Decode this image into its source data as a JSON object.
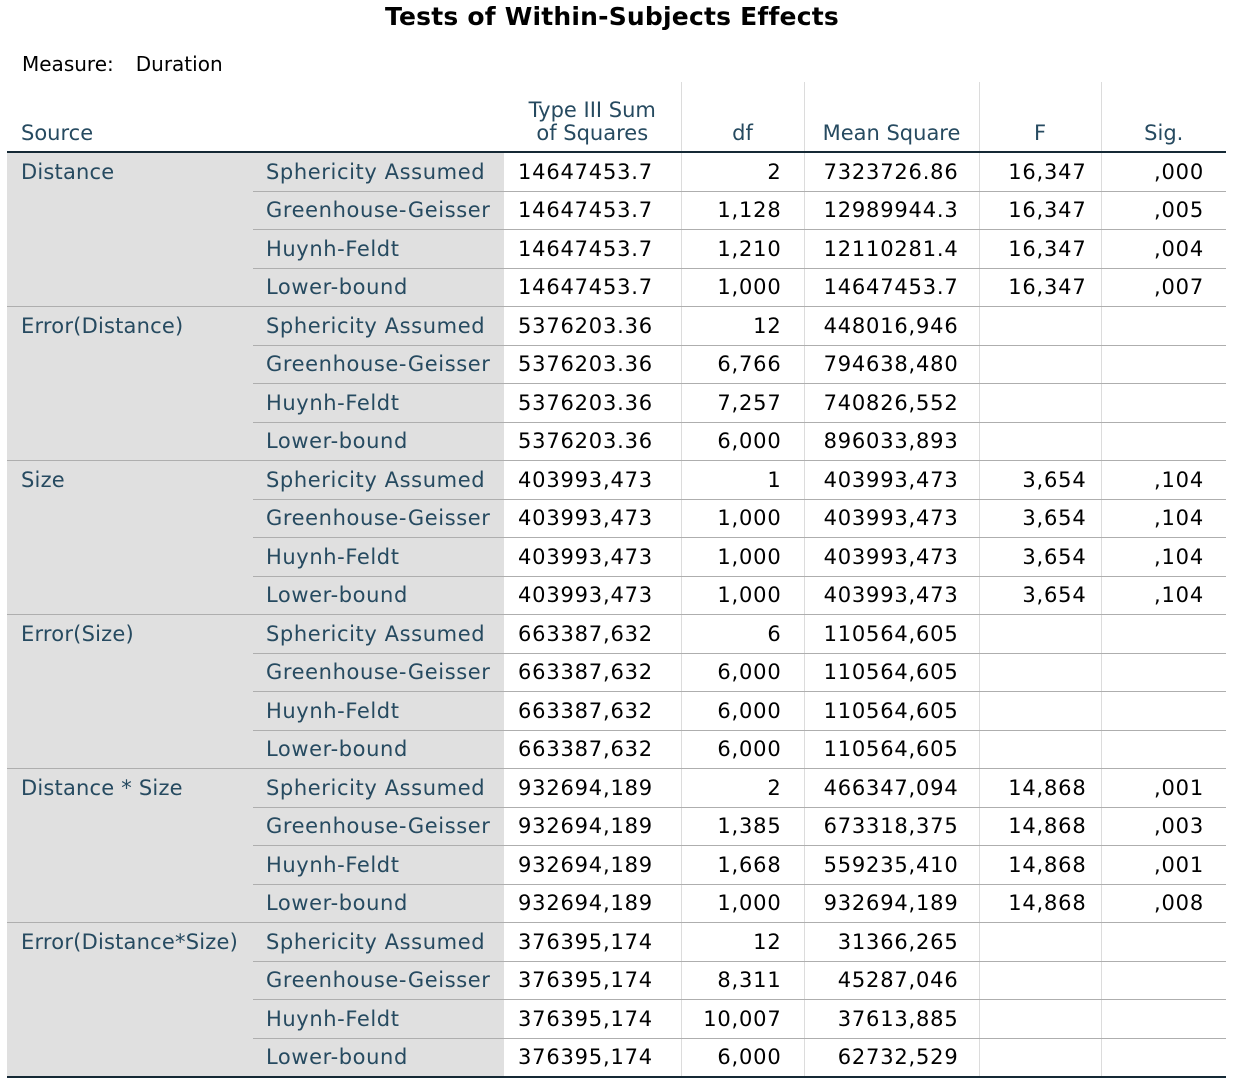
{
  "title": "Tests of Within-Subjects Effects",
  "measure": {
    "label": "Measure:",
    "value": "Duration"
  },
  "columns": {
    "source": "Source",
    "ss_line1": "Type III Sum",
    "ss_line2": "of Squares",
    "df": "df",
    "ms": "Mean Square",
    "f": "F",
    "sig": "Sig."
  },
  "groups": [
    {
      "source": "Distance",
      "rows": [
        {
          "cond": "Sphericity Assumed",
          "ss": "14647453.7",
          "df": "2",
          "ms": "7323726.86",
          "f": "16,347",
          "sig": ",000"
        },
        {
          "cond": "Greenhouse-Geisser",
          "ss": "14647453.7",
          "df": "1,128",
          "ms": "12989944.3",
          "f": "16,347",
          "sig": ",005"
        },
        {
          "cond": "Huynh-Feldt",
          "ss": "14647453.7",
          "df": "1,210",
          "ms": "12110281.4",
          "f": "16,347",
          "sig": ",004"
        },
        {
          "cond": "Lower-bound",
          "ss": "14647453.7",
          "df": "1,000",
          "ms": "14647453.7",
          "f": "16,347",
          "sig": ",007"
        }
      ]
    },
    {
      "source": "Error(Distance)",
      "rows": [
        {
          "cond": "Sphericity Assumed",
          "ss": "5376203.36",
          "df": "12",
          "ms": "448016,946",
          "f": "",
          "sig": ""
        },
        {
          "cond": "Greenhouse-Geisser",
          "ss": "5376203.36",
          "df": "6,766",
          "ms": "794638,480",
          "f": "",
          "sig": ""
        },
        {
          "cond": "Huynh-Feldt",
          "ss": "5376203.36",
          "df": "7,257",
          "ms": "740826,552",
          "f": "",
          "sig": ""
        },
        {
          "cond": "Lower-bound",
          "ss": "5376203.36",
          "df": "6,000",
          "ms": "896033,893",
          "f": "",
          "sig": ""
        }
      ]
    },
    {
      "source": "Size",
      "rows": [
        {
          "cond": "Sphericity Assumed",
          "ss": "403993,473",
          "df": "1",
          "ms": "403993,473",
          "f": "3,654",
          "sig": ",104"
        },
        {
          "cond": "Greenhouse-Geisser",
          "ss": "403993,473",
          "df": "1,000",
          "ms": "403993,473",
          "f": "3,654",
          "sig": ",104"
        },
        {
          "cond": "Huynh-Feldt",
          "ss": "403993,473",
          "df": "1,000",
          "ms": "403993,473",
          "f": "3,654",
          "sig": ",104"
        },
        {
          "cond": "Lower-bound",
          "ss": "403993,473",
          "df": "1,000",
          "ms": "403993,473",
          "f": "3,654",
          "sig": ",104"
        }
      ]
    },
    {
      "source": "Error(Size)",
      "rows": [
        {
          "cond": "Sphericity Assumed",
          "ss": "663387,632",
          "df": "6",
          "ms": "110564,605",
          "f": "",
          "sig": ""
        },
        {
          "cond": "Greenhouse-Geisser",
          "ss": "663387,632",
          "df": "6,000",
          "ms": "110564,605",
          "f": "",
          "sig": ""
        },
        {
          "cond": "Huynh-Feldt",
          "ss": "663387,632",
          "df": "6,000",
          "ms": "110564,605",
          "f": "",
          "sig": ""
        },
        {
          "cond": "Lower-bound",
          "ss": "663387,632",
          "df": "6,000",
          "ms": "110564,605",
          "f": "",
          "sig": ""
        }
      ]
    },
    {
      "source": "Distance * Size",
      "rows": [
        {
          "cond": "Sphericity Assumed",
          "ss": "932694,189",
          "df": "2",
          "ms": "466347,094",
          "f": "14,868",
          "sig": ",001"
        },
        {
          "cond": "Greenhouse-Geisser",
          "ss": "932694,189",
          "df": "1,385",
          "ms": "673318,375",
          "f": "14,868",
          "sig": ",003"
        },
        {
          "cond": "Huynh-Feldt",
          "ss": "932694,189",
          "df": "1,668",
          "ms": "559235,410",
          "f": "14,868",
          "sig": ",001"
        },
        {
          "cond": "Lower-bound",
          "ss": "932694,189",
          "df": "1,000",
          "ms": "932694,189",
          "f": "14,868",
          "sig": ",008"
        }
      ]
    },
    {
      "source": "Error(Distance*Size)",
      "rows": [
        {
          "cond": "Sphericity Assumed",
          "ss": "376395,174",
          "df": "12",
          "ms": "31366,265",
          "f": "",
          "sig": ""
        },
        {
          "cond": "Greenhouse-Geisser",
          "ss": "376395,174",
          "df": "8,311",
          "ms": "45287,046",
          "f": "",
          "sig": ""
        },
        {
          "cond": "Huynh-Feldt",
          "ss": "376395,174",
          "df": "10,007",
          "ms": "37613,885",
          "f": "",
          "sig": ""
        },
        {
          "cond": "Lower-bound",
          "ss": "376395,174",
          "df": "6,000",
          "ms": "62732,529",
          "f": "",
          "sig": ""
        }
      ]
    }
  ]
}
